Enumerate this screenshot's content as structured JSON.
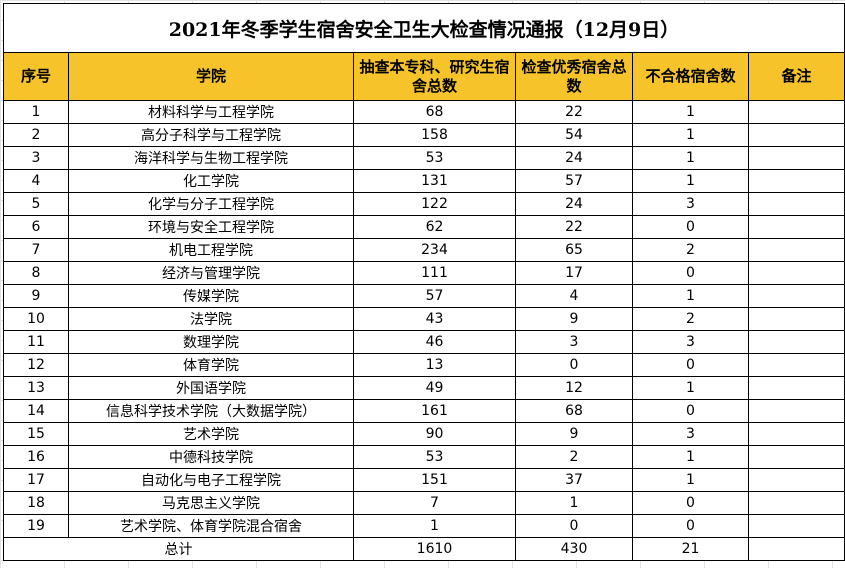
{
  "title": "2021年冬季学生宿舍安全卫生大检查情况通报（12月9日）",
  "headers": {
    "no": "序号",
    "college": "学院",
    "checked": "抽查本专科、研究生宿舍总数",
    "excellent": "检查优秀宿舍总数",
    "failed": "不合格宿舍数",
    "note": "备注"
  },
  "rows": [
    {
      "no": "1",
      "college": "材料科学与工程学院",
      "checked": "68",
      "excellent": "22",
      "failed": "1",
      "note": ""
    },
    {
      "no": "2",
      "college": "高分子科学与工程学院",
      "checked": "158",
      "excellent": "54",
      "failed": "1",
      "note": ""
    },
    {
      "no": "3",
      "college": "海洋科学与生物工程学院",
      "checked": "53",
      "excellent": "24",
      "failed": "1",
      "note": ""
    },
    {
      "no": "4",
      "college": "化工学院",
      "checked": "131",
      "excellent": "57",
      "failed": "1",
      "note": ""
    },
    {
      "no": "5",
      "college": "化学与分子工程学院",
      "checked": "122",
      "excellent": "24",
      "failed": "3",
      "note": ""
    },
    {
      "no": "6",
      "college": "环境与安全工程学院",
      "checked": "62",
      "excellent": "22",
      "failed": "0",
      "note": ""
    },
    {
      "no": "7",
      "college": "机电工程学院",
      "checked": "234",
      "excellent": "65",
      "failed": "2",
      "note": ""
    },
    {
      "no": "8",
      "college": "经济与管理学院",
      "checked": "111",
      "excellent": "17",
      "failed": "0",
      "note": ""
    },
    {
      "no": "9",
      "college": "传媒学院",
      "checked": "57",
      "excellent": "4",
      "failed": "1",
      "note": ""
    },
    {
      "no": "10",
      "college": "法学院",
      "checked": "43",
      "excellent": "9",
      "failed": "2",
      "note": ""
    },
    {
      "no": "11",
      "college": "数理学院",
      "checked": "46",
      "excellent": "3",
      "failed": "3",
      "note": ""
    },
    {
      "no": "12",
      "college": "体育学院",
      "checked": "13",
      "excellent": "0",
      "failed": "0",
      "note": ""
    },
    {
      "no": "13",
      "college": "外国语学院",
      "checked": "49",
      "excellent": "12",
      "failed": "1",
      "note": ""
    },
    {
      "no": "14",
      "college": "信息科学技术学院（大数据学院）",
      "checked": "161",
      "excellent": "68",
      "failed": "0",
      "note": ""
    },
    {
      "no": "15",
      "college": "艺术学院",
      "checked": "90",
      "excellent": "9",
      "failed": "3",
      "note": ""
    },
    {
      "no": "16",
      "college": "中德科技学院",
      "checked": "53",
      "excellent": "2",
      "failed": "1",
      "note": ""
    },
    {
      "no": "17",
      "college": "自动化与电子工程学院",
      "checked": "151",
      "excellent": "37",
      "failed": "1",
      "note": ""
    },
    {
      "no": "18",
      "college": "马克思主义学院",
      "checked": "7",
      "excellent": "1",
      "failed": "0",
      "note": ""
    },
    {
      "no": "19",
      "college": "艺术学院、体育学院混合宿舍",
      "checked": "1",
      "excellent": "0",
      "failed": "0",
      "note": ""
    }
  ],
  "total": {
    "label": "总计",
    "checked": "1610",
    "excellent": "430",
    "failed": "21",
    "note": ""
  },
  "colors": {
    "header_bg": "#f6c42a",
    "border": "#000000",
    "grid": "#e2e2e2"
  }
}
